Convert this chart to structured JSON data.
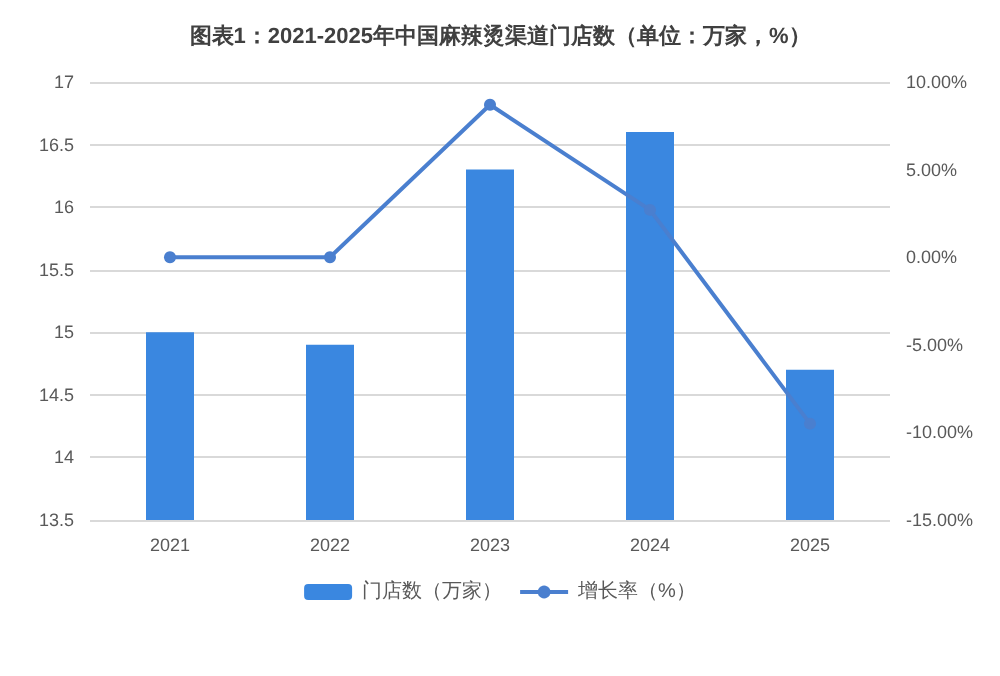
{
  "chart_data": {
    "type": "bar",
    "title": "图表1：2021-2025年中国麻辣烫渠道门店数（单位：万家，%）",
    "categories": [
      "2021",
      "2022",
      "2023",
      "2024",
      "2025"
    ],
    "series": [
      {
        "name": "门店数（万家）",
        "color": "#3a87e0",
        "values": [
          15.0,
          14.9,
          16.3,
          16.6,
          14.7
        ]
      },
      {
        "name": "增长率（%）",
        "type": "line",
        "axis": "y2",
        "color": "#4a7fcf",
        "values": [
          0,
          0,
          8.7,
          2.7,
          -9.5
        ]
      }
    ],
    "ylim": [
      13.5,
      17
    ],
    "yticks": [
      13.5,
      14,
      14.5,
      15,
      15.5,
      16,
      16.5,
      17
    ],
    "y2lim": [
      -15,
      10
    ],
    "y2ticks": [
      {
        "value": -15,
        "label": "-15.00%"
      },
      {
        "value": -10,
        "label": "-10.00%"
      },
      {
        "value": -5,
        "label": "-5.00%"
      },
      {
        "value": 0,
        "label": "0.00%"
      },
      {
        "value": 5,
        "label": "5.00%"
      },
      {
        "value": 10,
        "label": "10.00%"
      }
    ],
    "grid": "y",
    "legend": "bottom",
    "marker": "circle",
    "line_style": "solid"
  }
}
